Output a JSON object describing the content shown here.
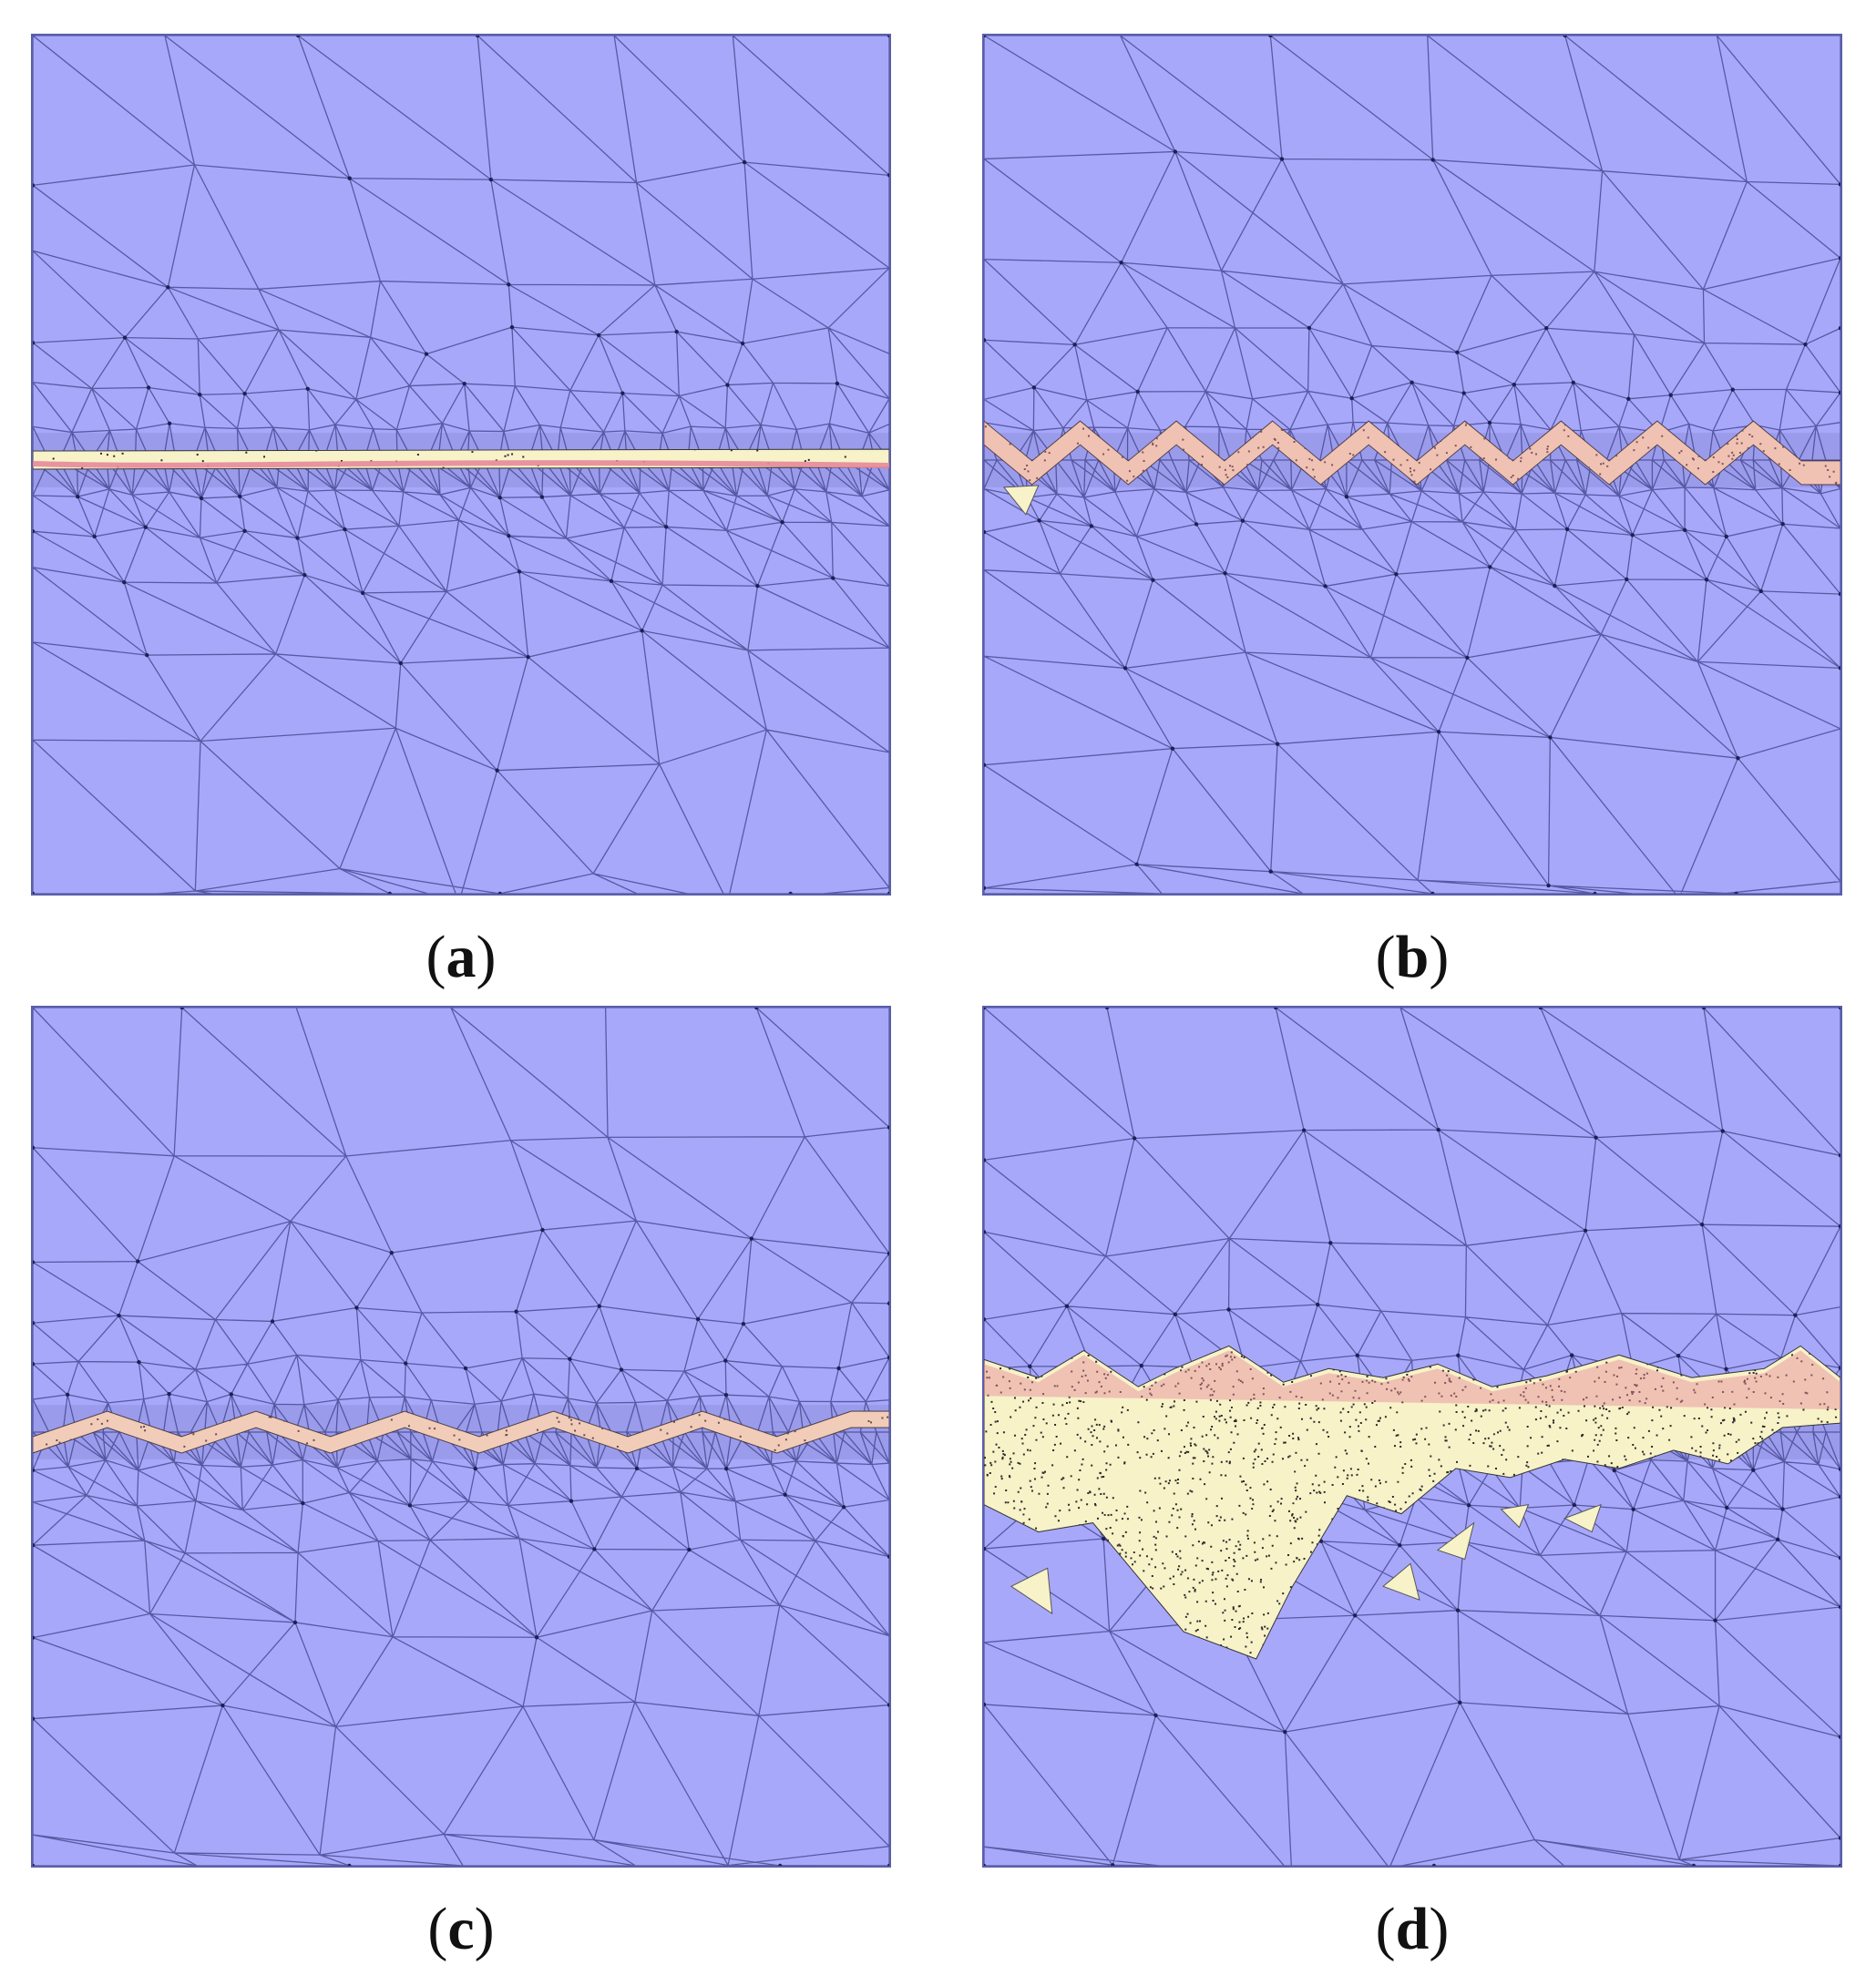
{
  "panels": [
    {
      "id": "a",
      "label": "a",
      "open": "(",
      "close": ")"
    },
    {
      "id": "b",
      "label": "b",
      "open": "(",
      "close": ")"
    },
    {
      "id": "c",
      "label": "c",
      "open": "(",
      "close": ")"
    },
    {
      "id": "d",
      "label": "d",
      "open": "(",
      "close": ")"
    }
  ],
  "colors": {
    "mesh_fill": "#a8a8fa",
    "mesh_line": "#3c3f86",
    "damage_yellow": "#f7f2c8",
    "damage_pink": "#e6889a"
  }
}
